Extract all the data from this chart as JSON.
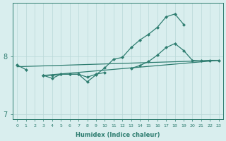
{
  "xlabel": "Humidex (Indice chaleur)",
  "x_values": [
    0,
    1,
    2,
    3,
    4,
    5,
    6,
    7,
    8,
    9,
    10,
    11,
    12,
    13,
    14,
    15,
    16,
    17,
    18,
    19,
    20,
    21,
    22,
    23
  ],
  "line1_y": [
    7.85,
    7.77,
    null,
    7.67,
    7.67,
    7.69,
    7.69,
    7.69,
    7.64,
    7.69,
    7.72,
    null,
    null,
    7.79,
    7.84,
    7.91,
    8.02,
    8.15,
    8.22,
    8.1,
    7.93,
    7.92,
    7.93,
    7.93
  ],
  "line2_y": [
    null,
    null,
    null,
    7.67,
    7.62,
    7.69,
    7.69,
    7.69,
    7.56,
    7.68,
    7.8,
    7.95,
    7.98,
    8.15,
    8.28,
    8.38,
    8.5,
    8.68,
    8.73,
    8.55,
    null,
    null,
    null,
    null
  ],
  "trend1_x": [
    0,
    23
  ],
  "trend1_y": [
    7.82,
    7.93
  ],
  "trend2_x": [
    3,
    23
  ],
  "trend2_y": [
    7.67,
    7.93
  ],
  "ylim": [
    6.92,
    8.92
  ],
  "yticks": [
    7,
    8
  ],
  "xlim": [
    -0.5,
    23.5
  ],
  "background_color": "#d9eeee",
  "grid_color": "#b8d8d8",
  "line_color": "#2e7d70",
  "font_color": "#2e7d70"
}
